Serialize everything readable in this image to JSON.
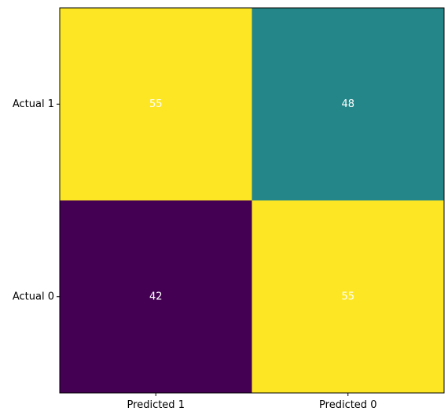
{
  "chart_data": {
    "type": "heatmap",
    "x_categories": [
      "Predicted 1",
      "Predicted 0"
    ],
    "y_categories": [
      "Actual 1",
      "Actual 0"
    ],
    "values": [
      [
        55,
        48
      ],
      [
        42,
        55
      ]
    ],
    "colormap": "viridis",
    "value_range": [
      42,
      55
    ],
    "title": "",
    "xlabel": "",
    "ylabel": "",
    "grid": false,
    "colors": {
      "low": "#440154",
      "mid": "#21918c",
      "high": "#fde725",
      "annotation": "#ffffff",
      "axis": "#000000"
    }
  }
}
